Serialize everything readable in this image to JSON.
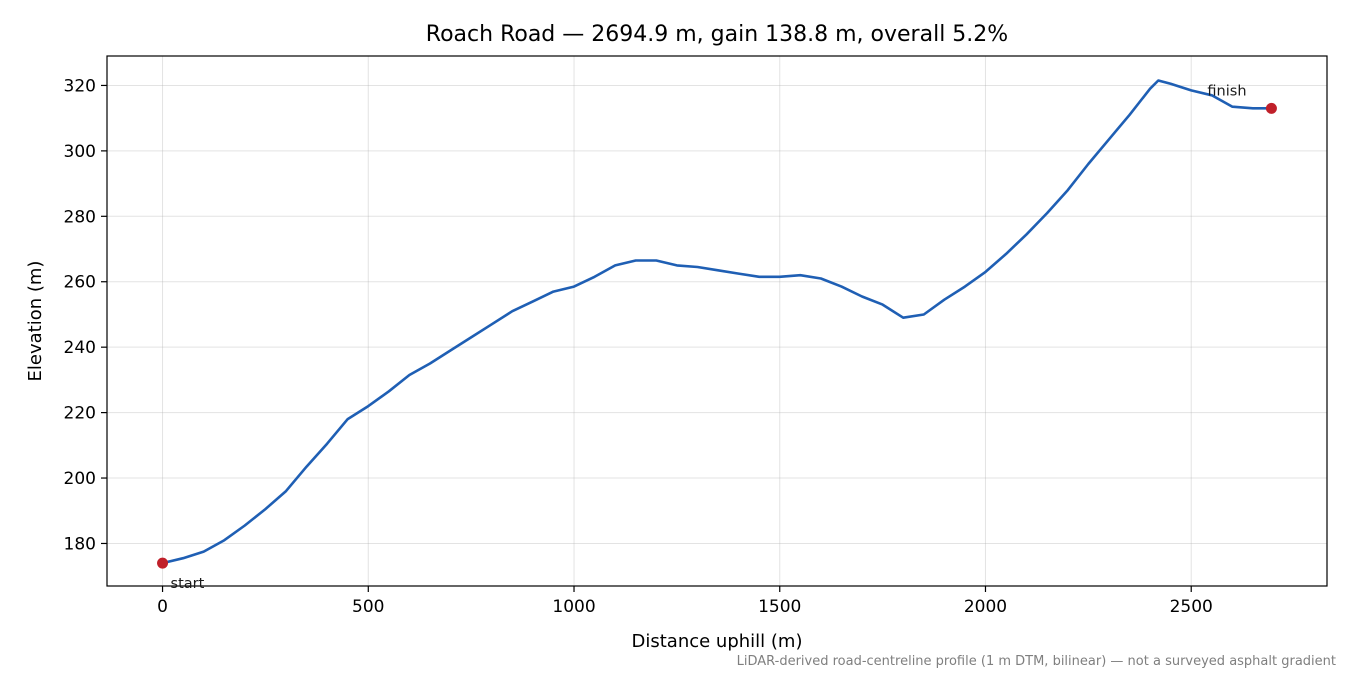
{
  "chart_data": {
    "type": "line",
    "title": "Roach Road — 2694.9 m, gain 138.8 m, overall 5.2%",
    "xlabel": "Distance uphill (m)",
    "ylabel": "Elevation (m)",
    "xlim": [
      -135,
      2830
    ],
    "ylim": [
      167,
      329
    ],
    "xticks": [
      0,
      500,
      1000,
      1500,
      2000,
      2500
    ],
    "yticks": [
      180,
      200,
      220,
      240,
      260,
      280,
      300,
      320
    ],
    "grid": true,
    "series": [
      {
        "color": "#1f5fb4",
        "x": [
          0,
          50,
          100,
          150,
          200,
          250,
          300,
          350,
          400,
          450,
          500,
          550,
          600,
          650,
          700,
          750,
          800,
          850,
          900,
          950,
          1000,
          1050,
          1100,
          1150,
          1200,
          1250,
          1300,
          1350,
          1400,
          1450,
          1500,
          1550,
          1600,
          1650,
          1700,
          1750,
          1800,
          1850,
          1900,
          1950,
          2000,
          2050,
          2100,
          2150,
          2200,
          2250,
          2300,
          2350,
          2400,
          2420,
          2450,
          2500,
          2550,
          2600,
          2650,
          2694.9
        ],
        "y": [
          174.0,
          175.5,
          177.5,
          181.0,
          185.5,
          190.5,
          196.0,
          203.5,
          210.5,
          218.0,
          222.0,
          226.5,
          231.5,
          235.0,
          239.0,
          243.0,
          247.0,
          251.0,
          254.0,
          257.0,
          258.5,
          261.5,
          265.0,
          266.5,
          266.5,
          265.0,
          264.5,
          263.5,
          262.5,
          261.5,
          261.5,
          262.0,
          261.0,
          258.5,
          255.5,
          253.0,
          249.0,
          250.0,
          254.5,
          258.5,
          263.0,
          268.5,
          274.5,
          281.0,
          288.0,
          296.0,
          303.5,
          311.0,
          319.0,
          321.5,
          320.5,
          318.5,
          317.0,
          313.5,
          313.0,
          313.0
        ]
      }
    ],
    "markers": [
      {
        "label": "start",
        "x": 0,
        "y": 174.0,
        "color": "#c0202a"
      },
      {
        "label": "finish",
        "x": 2694.9,
        "y": 313.0,
        "color": "#c0202a"
      }
    ],
    "footnote": "LiDAR-derived road-centreline profile (1 m DTM, bilinear) — not a surveyed asphalt gradient"
  }
}
